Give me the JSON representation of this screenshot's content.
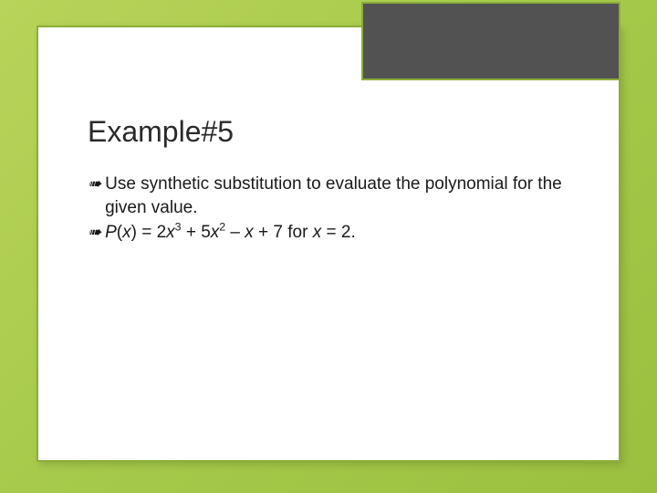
{
  "background": {
    "gradient_start": "#b8d45a",
    "gradient_mid": "#a5c94a",
    "gradient_end": "#9bbf3f"
  },
  "card": {
    "border_color": "#8aad3a",
    "background_color": "#ffffff",
    "tab_color": "#525252"
  },
  "heading": {
    "text": "Example#5",
    "fontsize": 32,
    "color": "#2a2a2a"
  },
  "bullets": [
    {
      "icon": "➠",
      "plain": "Use synthetic substitution to evaluate the polynomial for the given value.",
      "html": "Use synthetic substitution to evaluate the polynomial for the given value."
    },
    {
      "icon": "➠",
      "plain": "P(x) = 2x^3 + 5x^2 – x + 7 for x = 2.",
      "html": "<span class='ital'>P</span>(<span class='ital'>x</span>) = 2<span class='ital'>x</span><sup>3</sup> + 5<span class='ital'>x</span><sup>2</sup> – <span class='ital'>x</span> + 7 for <span class='ital'>x</span> = 2."
    }
  ],
  "typography": {
    "body_fontsize": 19,
    "body_color": "#1a1a1a",
    "font_family": "Arial"
  }
}
